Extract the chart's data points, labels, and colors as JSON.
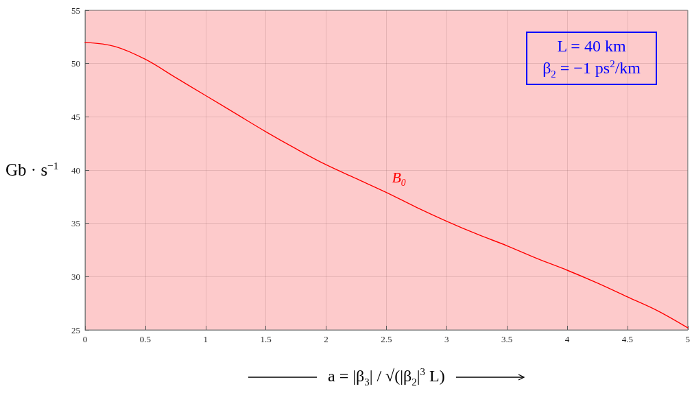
{
  "chart_data": {
    "type": "line",
    "xlabel": "a = |β$_{3}$| / √(|β$_{2}$|$^{3}$ L)",
    "ylabel": "Gb · s$^{−1}$",
    "x": [
      0,
      0.25,
      0.5,
      0.75,
      1,
      1.25,
      1.5,
      1.75,
      2,
      2.25,
      2.5,
      2.75,
      3,
      3.25,
      3.5,
      3.75,
      4,
      4.25,
      4.5,
      4.75,
      5
    ],
    "series": [
      {
        "name": "B$_{0}$",
        "color": "#ff0000",
        "values": [
          52.0,
          51.6,
          50.4,
          48.7,
          47.0,
          45.3,
          43.6,
          42.0,
          40.5,
          39.2,
          37.9,
          36.5,
          35.2,
          34.0,
          32.9,
          31.7,
          30.6,
          29.4,
          28.1,
          26.8,
          25.2
        ]
      }
    ],
    "xlim": [
      0,
      5
    ],
    "xticks": [
      0,
      0.5,
      1,
      1.5,
      2,
      2.5,
      3,
      3.5,
      4,
      4.5,
      5
    ],
    "ylim": [
      25,
      55
    ],
    "yticks": [
      25,
      30,
      35,
      40,
      45,
      50,
      55
    ],
    "grid": true,
    "marker": "none",
    "legend": false,
    "annotations": [
      "L = 40 km",
      "β$_{2}$ = −1 ps$^{2}$/km"
    ]
  }
}
